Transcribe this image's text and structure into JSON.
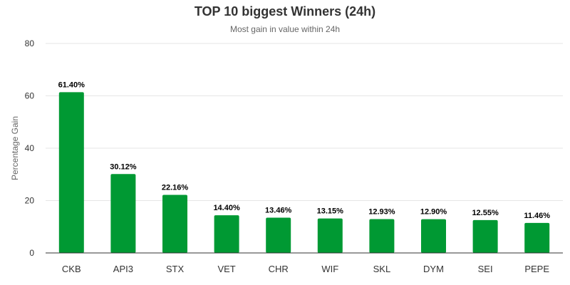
{
  "chart_data": {
    "type": "bar",
    "title": "TOP 10 biggest Winners (24h)",
    "subtitle": "Most gain in value within 24h",
    "xlabel": "",
    "ylabel": "Percentage Gain",
    "ylim": [
      0,
      80
    ],
    "yticks": [
      "0",
      "20",
      "40",
      "60",
      "80"
    ],
    "grid": true,
    "categories": [
      "CKB",
      "API3",
      "STX",
      "VET",
      "CHR",
      "WIF",
      "SKL",
      "DYM",
      "SEI",
      "PEPE"
    ],
    "values": [
      61.4,
      30.12,
      22.16,
      14.4,
      13.46,
      13.15,
      12.93,
      12.9,
      12.55,
      11.46
    ],
    "labels": [
      "61.40%",
      "30.12%",
      "22.16%",
      "14.40%",
      "13.46%",
      "13.15%",
      "12.93%",
      "12.90%",
      "12.55%",
      "11.46%"
    ],
    "bar_color": "#009933"
  }
}
